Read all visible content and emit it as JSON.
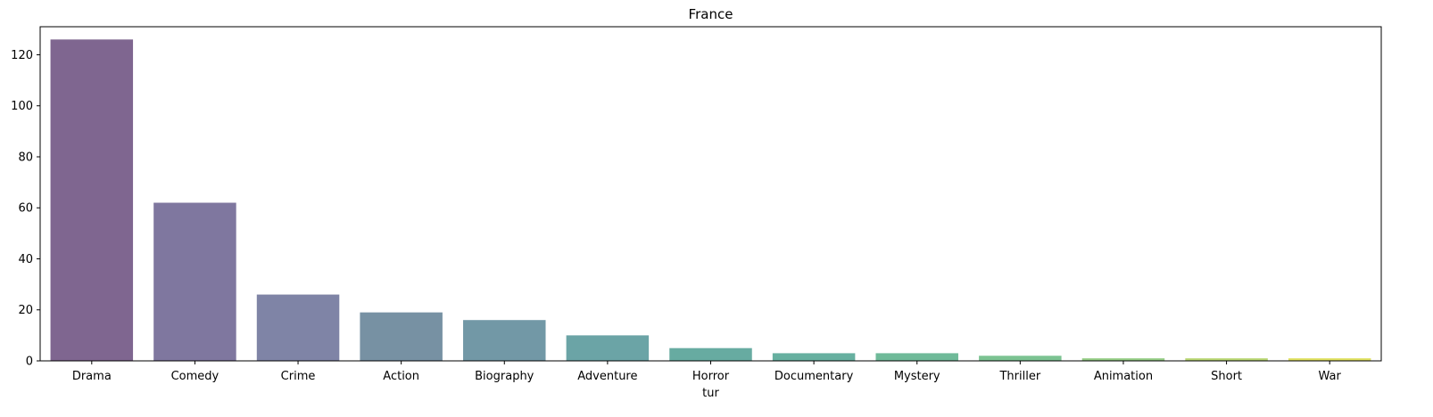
{
  "chart_data": {
    "type": "bar",
    "title": "France",
    "xlabel": "tur",
    "ylabel": "",
    "categories": [
      "Drama",
      "Comedy",
      "Crime",
      "Action",
      "Biography",
      "Adventure",
      "Horror",
      "Documentary",
      "Mystery",
      "Thriller",
      "Animation",
      "Short",
      "War"
    ],
    "values": [
      126,
      62,
      26,
      19,
      16,
      10,
      5,
      3,
      3,
      2,
      1,
      1,
      1
    ],
    "colors": [
      "#7f6690",
      "#7f779f",
      "#7f84a6",
      "#7791a3",
      "#7298a6",
      "#6ba4a6",
      "#67aba1",
      "#67b0a0",
      "#6fba99",
      "#7cc392",
      "#95cc85",
      "#b9d673",
      "#dfe05f"
    ],
    "ylim": [
      0,
      131
    ],
    "yticks": [
      0,
      20,
      40,
      60,
      80,
      100,
      120
    ],
    "grid": false,
    "legend": false
  }
}
